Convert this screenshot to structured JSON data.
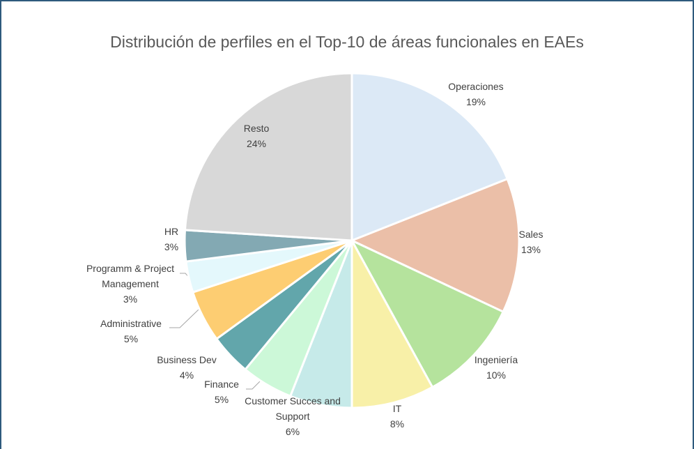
{
  "chart_data": {
    "type": "pie",
    "title": "Distribución de perfiles en el Top-10 de áreas funcionales en EAEs",
    "categories": [
      "Operaciones",
      "Sales",
      "Ingeniería",
      "IT",
      "Customer Succes and Support",
      "Finance",
      "Business Dev",
      "Administrative",
      "Programm & Project Management",
      "HR",
      "Resto"
    ],
    "values": [
      19,
      13,
      10,
      8,
      6,
      5,
      4,
      5,
      3,
      3,
      24
    ],
    "value_labels": [
      "19%",
      "13%",
      "10%",
      "8%",
      "6%",
      "5%",
      "4%",
      "5%",
      "3%",
      "3%",
      "24%"
    ],
    "colors": [
      "#dce9f6",
      "#ebbfa8",
      "#b5e39d",
      "#f8f0a8",
      "#c6eae9",
      "#ccf8d8",
      "#62a6ab",
      "#fdcd72",
      "#e4f8fc",
      "#83a9b3",
      "#d8d8d8"
    ]
  }
}
